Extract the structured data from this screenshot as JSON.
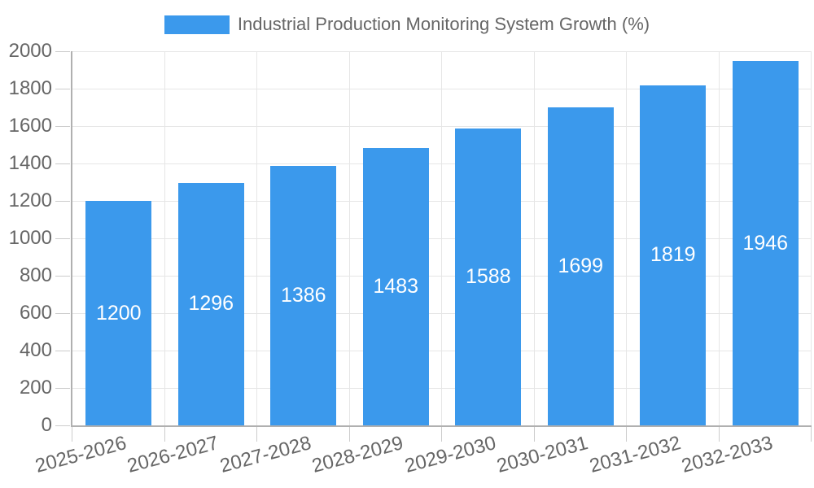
{
  "legend": {
    "label": "Industrial Production Monitoring System Growth (%)"
  },
  "colors": {
    "bar": "#3b99ec",
    "grid": "#e6e6e6",
    "axis": "#b0b0b0",
    "tick": "#cccccc",
    "text": "#666666",
    "value_label": "#ffffff",
    "background": "#ffffff"
  },
  "chart_data": {
    "type": "bar",
    "title": "Industrial Production Monitoring System Growth (%)",
    "categories": [
      "2025-2026",
      "2026-2027",
      "2027-2028",
      "2028-2029",
      "2029-2030",
      "2030-2031",
      "2031-2032",
      "2032-2033"
    ],
    "values": [
      1200,
      1296,
      1386,
      1483,
      1588,
      1699,
      1819,
      1946
    ],
    "value_labels_shown": [
      "1200",
      "1296",
      "1386",
      "1483",
      "1588",
      "1699",
      "1819",
      "1946"
    ],
    "xlabel": "",
    "ylabel": "",
    "ylim": [
      0,
      2000
    ],
    "yticks": [
      0,
      200,
      400,
      600,
      800,
      1000,
      1200,
      1400,
      1600,
      1800,
      2000
    ],
    "grid": true,
    "legend_position": "top",
    "value_label_position": "inside-center",
    "x_tick_rotation_deg": -15
  }
}
